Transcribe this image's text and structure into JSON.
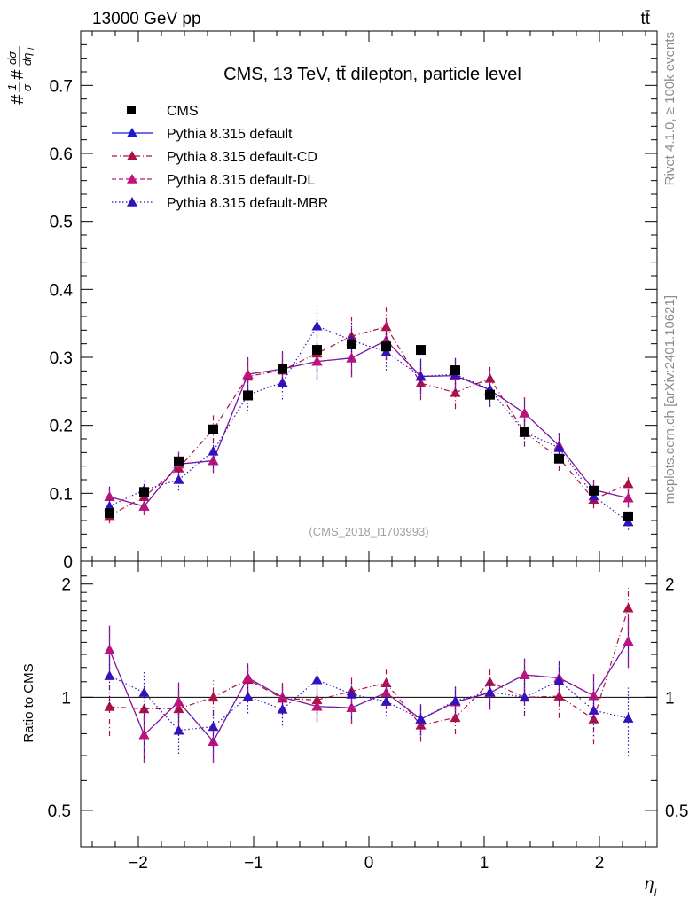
{
  "header": {
    "left": "13000 GeV pp",
    "right": "tt̄"
  },
  "side_labels": {
    "top": "Rivet 4.1.0, ≥ 100k events",
    "bottom": "mcplots.cern.ch [arXiv:2401.10621]"
  },
  "chart_data": {
    "type": "scatter",
    "title": "CMS, 13 TeV, tt̄ dilepton, particle level",
    "watermark": "(CMS_2018_I1703993)",
    "ylabel": "1/σ dσ/dη_l",
    "xlabel": "η_l",
    "ratio_ylabel": "Ratio to CMS",
    "xlim": [
      -2.5,
      2.5
    ],
    "ylim": [
      0,
      0.78
    ],
    "ratio_ylim": [
      0.4,
      2.3
    ],
    "xticks": [
      -2,
      -1,
      0,
      1,
      2
    ],
    "xtick_labels": [
      "−2",
      "−1",
      "0",
      "1",
      "2"
    ],
    "yticks": [
      0,
      0.1,
      0.2,
      0.3,
      0.4,
      0.5,
      0.6,
      0.7
    ],
    "ytick_labels": [
      "0",
      "0.1",
      "0.2",
      "0.3",
      "0.4",
      "0.5",
      "0.6",
      "0.7"
    ],
    "ratio_yticks": [
      0.5,
      1,
      2
    ],
    "ratio_ytick_labels": [
      "0.5",
      "1",
      "2"
    ],
    "x": [
      -2.25,
      -1.95,
      -1.65,
      -1.35,
      -1.05,
      -0.75,
      -0.45,
      -0.15,
      0.15,
      0.45,
      0.75,
      1.05,
      1.35,
      1.65,
      1.95,
      2.25
    ],
    "data": {
      "name": "CMS",
      "values": [
        0.071,
        0.102,
        0.147,
        0.194,
        0.244,
        0.283,
        0.311,
        0.319,
        0.316,
        0.311,
        0.281,
        0.245,
        0.19,
        0.151,
        0.104,
        0.066
      ]
    },
    "series": [
      {
        "name": "Pythia 8.315 default",
        "color": "#1a1ad6",
        "dash": "solid",
        "values": [
          0.095,
          0.081,
          0.143,
          0.148,
          0.275,
          0.283,
          0.294,
          0.299,
          0.325,
          0.272,
          0.273,
          0.252,
          0.218,
          0.17,
          0.105,
          0.093
        ],
        "errors": [
          0.015,
          0.013,
          0.018,
          0.018,
          0.025,
          0.026,
          0.027,
          0.028,
          0.029,
          0.026,
          0.026,
          0.025,
          0.023,
          0.019,
          0.015,
          0.014
        ]
      },
      {
        "name": "Pythia 8.315 default-CD",
        "color": "#aa1144",
        "dash": "dashdot",
        "values": [
          0.067,
          0.095,
          0.137,
          0.194,
          0.272,
          0.281,
          0.306,
          0.331,
          0.345,
          0.262,
          0.248,
          0.269,
          0.19,
          0.152,
          0.091,
          0.114
        ],
        "errors": [
          0.011,
          0.013,
          0.017,
          0.021,
          0.025,
          0.026,
          0.027,
          0.029,
          0.029,
          0.025,
          0.024,
          0.025,
          0.021,
          0.019,
          0.013,
          0.015
        ]
      },
      {
        "name": "Pythia 8.315 default-DL",
        "color": "#c0127a",
        "dash": "dashed",
        "values": [
          0.095,
          0.081,
          0.143,
          0.148,
          0.275,
          0.283,
          0.294,
          0.299,
          0.325,
          0.272,
          0.273,
          0.252,
          0.218,
          0.17,
          0.105,
          0.093
        ],
        "errors": [
          0.015,
          0.013,
          0.018,
          0.018,
          0.025,
          0.026,
          0.027,
          0.028,
          0.029,
          0.026,
          0.026,
          0.025,
          0.023,
          0.019,
          0.015,
          0.014
        ]
      },
      {
        "name": "Pythia 8.315 default-MBR",
        "color": "#3311bb",
        "dash": "dotted",
        "values": [
          0.081,
          0.105,
          0.12,
          0.162,
          0.245,
          0.263,
          0.346,
          0.325,
          0.308,
          0.272,
          0.275,
          0.253,
          0.19,
          0.167,
          0.096,
          0.058
        ],
        "errors": [
          0.013,
          0.014,
          0.016,
          0.019,
          0.024,
          0.025,
          0.029,
          0.028,
          0.027,
          0.026,
          0.025,
          0.025,
          0.021,
          0.019,
          0.014,
          0.012
        ]
      }
    ],
    "legend_position": "top-left"
  }
}
